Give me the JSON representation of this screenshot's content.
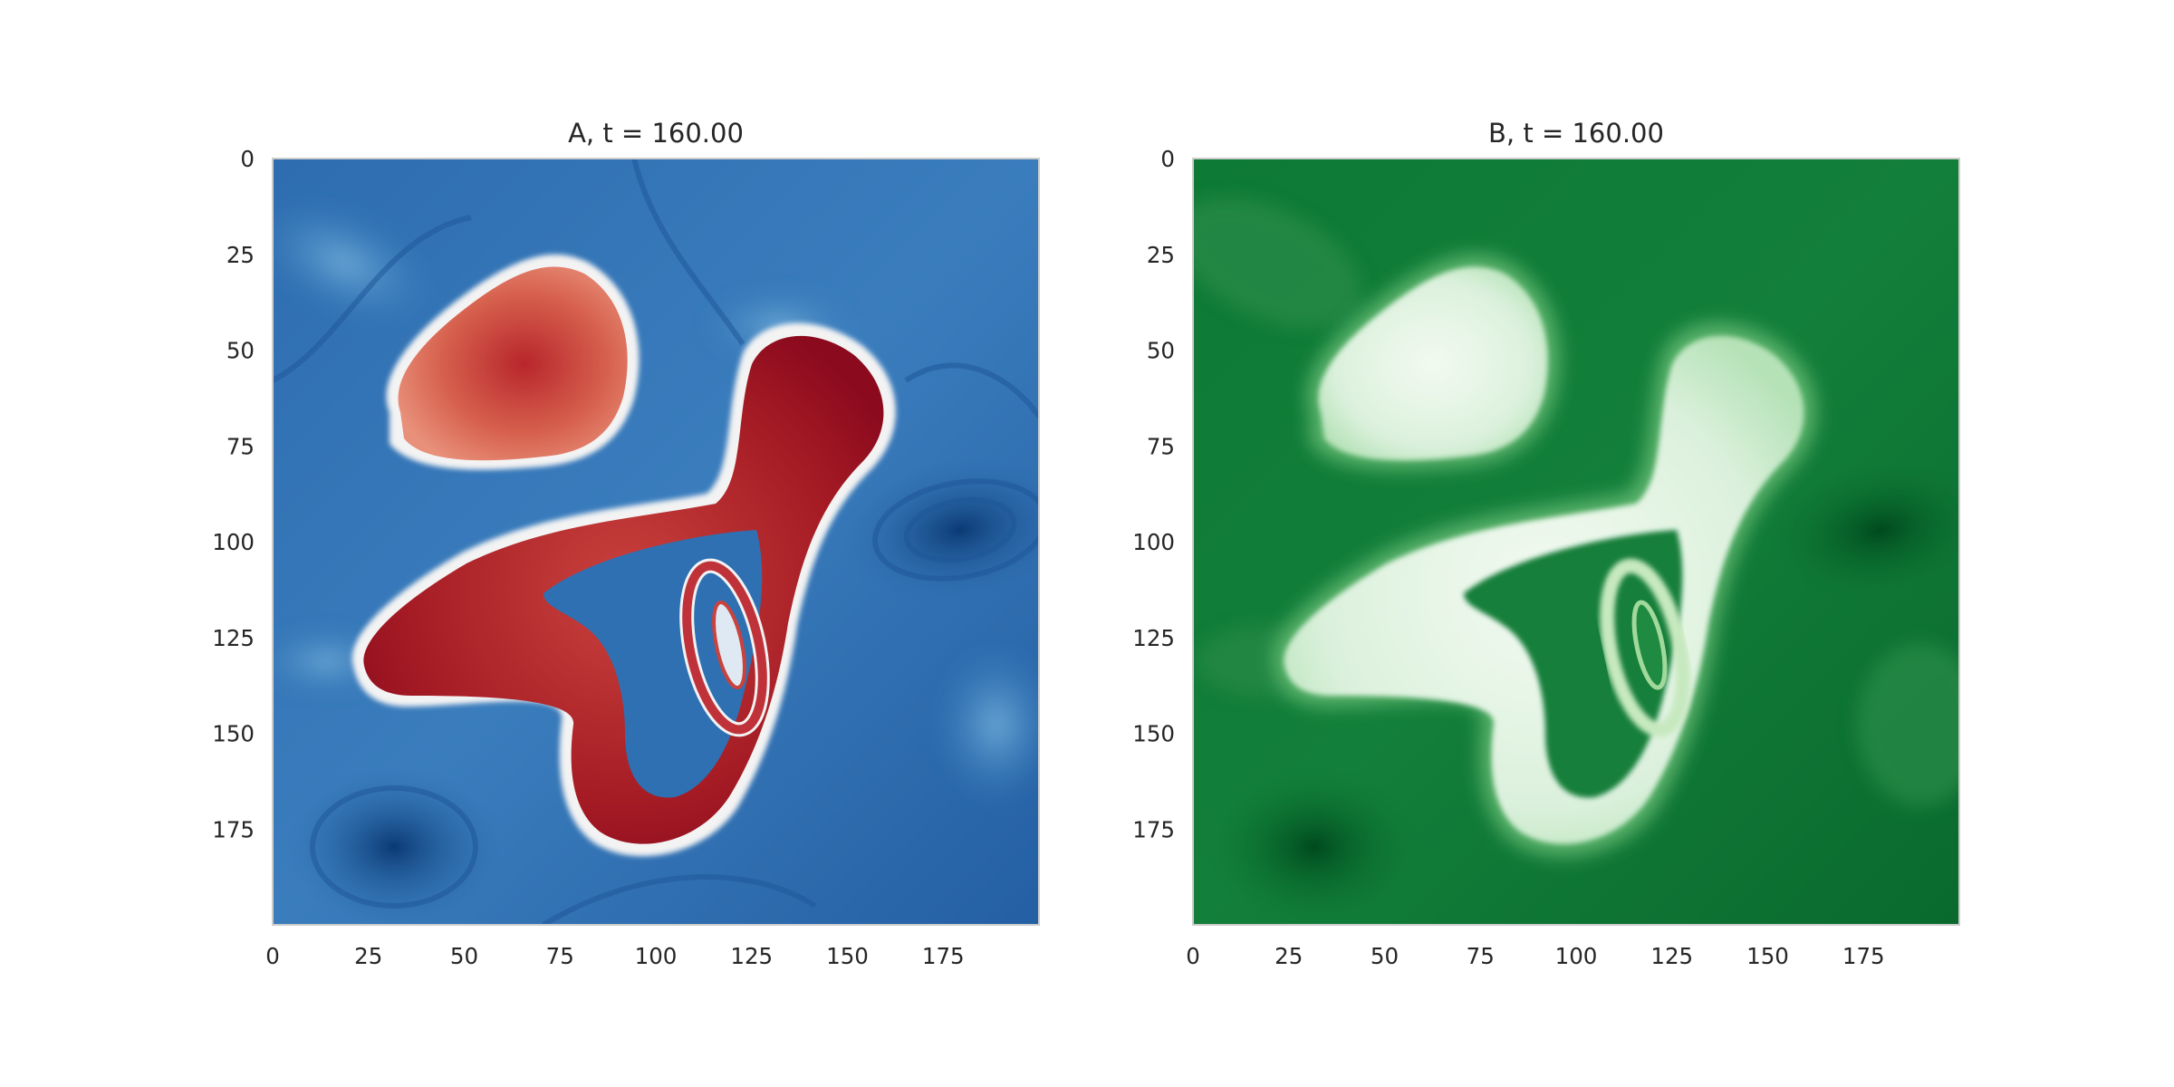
{
  "chart_data": [
    {
      "type": "heatmap",
      "title": "A, t = 160.00",
      "colormap": "RdBu_r",
      "colors": {
        "low": "#08306b",
        "mid": "#f7f7f7",
        "high": "#67001f"
      },
      "xlim": [
        0,
        200
      ],
      "ylim": [
        200,
        0
      ],
      "xticks": [
        "0",
        "25",
        "50",
        "75",
        "100",
        "125",
        "150",
        "175"
      ],
      "yticks": [
        "0",
        "25",
        "50",
        "75",
        "100",
        "125",
        "150",
        "175"
      ],
      "grid": false,
      "field": {
        "background_level": 0.22,
        "blobs": [
          {
            "label": "upper-left blob",
            "center": [
              72,
              55
            ],
            "level": 0.72
          },
          {
            "label": "central S-shaped blob",
            "center": [
              120,
              110
            ],
            "level": 0.86
          },
          {
            "label": "inner loop",
            "center": [
              120,
              135
            ],
            "level": 0.78
          }
        ],
        "dark_vortex": {
          "center": [
            178,
            97
          ],
          "level": 0.08
        }
      }
    },
    {
      "type": "heatmap",
      "title": "B, t = 160.00",
      "colormap": "Greens_r",
      "colors": {
        "low": "#00441b",
        "mid": "#41ab5d",
        "high": "#f7fcf5"
      },
      "xlim": [
        0,
        200
      ],
      "ylim": [
        200,
        0
      ],
      "xticks": [
        "0",
        "25",
        "50",
        "75",
        "100",
        "125",
        "150",
        "175"
      ],
      "yticks": [
        "0",
        "25",
        "50",
        "75",
        "100",
        "125",
        "150",
        "175"
      ],
      "grid": false,
      "field": {
        "background_level": 0.2,
        "blobs": [
          {
            "label": "upper-left blob",
            "center": [
              72,
              55
            ],
            "level": 0.95
          },
          {
            "label": "central S-shaped blob",
            "center": [
              120,
              110
            ],
            "level": 0.97
          },
          {
            "label": "inner loop",
            "center": [
              120,
              135
            ],
            "level": 0.75
          }
        ],
        "dark_vortex": {
          "center": [
            178,
            97
          ],
          "level": 0.05
        }
      }
    }
  ]
}
